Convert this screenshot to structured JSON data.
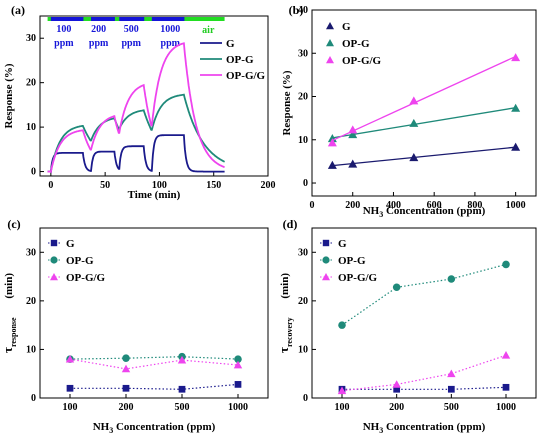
{
  "chart_data": [
    {
      "panel": "(a)",
      "type": "line",
      "xlabel": "Time (min)",
      "ylabel": "Response (%)",
      "xlim": [
        -10,
        200
      ],
      "ylim": [
        -1,
        35
      ],
      "xticks": [
        "0",
        "50",
        "100",
        "150",
        "200"
      ],
      "yticks": [
        "0",
        "10",
        "20",
        "30"
      ],
      "legend": [
        "G",
        "OP-G",
        "OP-G/G"
      ],
      "legend_position": "right-middle",
      "annotations": [
        "100",
        "ppm",
        "200",
        "ppm",
        "500",
        "ppm",
        "1000",
        "ppm",
        "air"
      ],
      "pulses": [
        {
          "concentration": "100 ppm",
          "on": 0,
          "off": 30
        },
        {
          "concentration": "200 ppm",
          "on": 37,
          "off": 59
        },
        {
          "concentration": "500 ppm",
          "on": 63,
          "off": 86
        },
        {
          "concentration": "1000 ppm",
          "on": 93,
          "off": 123
        }
      ],
      "series": [
        {
          "name": "G",
          "color": "#1a1a8c",
          "peaks": [
            4.2,
            4.5,
            5.7,
            8.2
          ]
        },
        {
          "name": "OP-G",
          "color": "#1f8a7a",
          "peaks": [
            10.3,
            12.0,
            13.8,
            17.3
          ]
        },
        {
          "name": "OP-G/G",
          "color": "#ee44ee",
          "peaks": [
            9.3,
            12.5,
            19.5,
            28.9
          ]
        }
      ]
    },
    {
      "panel": "(b)",
      "type": "scatter",
      "xlabel": "NH3 Concentration (ppm)",
      "ylabel": "Response (%)",
      "xlim": [
        0,
        1100
      ],
      "ylim": [
        -3,
        40
      ],
      "xticks": [
        "0",
        "200",
        "400",
        "600",
        "800",
        "1000"
      ],
      "yticks": [
        "0",
        "10",
        "20",
        "30",
        "40"
      ],
      "legend_position": "top-left",
      "x": [
        100,
        200,
        500,
        1000
      ],
      "series": [
        {
          "name": "G",
          "color": "#1a1a6e",
          "marker": "triangle",
          "values": [
            4.1,
            4.4,
            5.9,
            8.3
          ]
        },
        {
          "name": "OP-G",
          "color": "#1f8a7a",
          "marker": "triangle",
          "values": [
            10.3,
            11.2,
            13.8,
            17.3
          ]
        },
        {
          "name": "OP-G/G",
          "color": "#ee44ee",
          "marker": "triangle",
          "values": [
            9.3,
            12.3,
            19.0,
            29.0
          ]
        }
      ]
    },
    {
      "panel": "(c)",
      "type": "line",
      "xlabel": "NH3 Concentration (ppm)",
      "ylabel": "τresponse (min)",
      "categories": [
        "100",
        "200",
        "500",
        "1000"
      ],
      "ylim": [
        0,
        35
      ],
      "yticks": [
        "0",
        "10",
        "20",
        "30"
      ],
      "legend_position": "top-left",
      "series": [
        {
          "name": "G",
          "color": "#1a1a8c",
          "marker": "square",
          "values": [
            2.0,
            2.0,
            1.8,
            2.8
          ]
        },
        {
          "name": "OP-G",
          "color": "#1f8a7a",
          "marker": "circle",
          "values": [
            8.0,
            8.2,
            8.5,
            8.0
          ]
        },
        {
          "name": "OP-G/G",
          "color": "#ee44ee",
          "marker": "triangle",
          "values": [
            8.0,
            6.0,
            7.8,
            6.8
          ]
        }
      ]
    },
    {
      "panel": "(d)",
      "type": "line",
      "xlabel": "NH3 Concentration (ppm)",
      "ylabel": "τrecovery (min)",
      "categories": [
        "100",
        "200",
        "500",
        "1000"
      ],
      "ylim": [
        0,
        35
      ],
      "yticks": [
        "0",
        "10",
        "20",
        "30"
      ],
      "legend_position": "top-left",
      "series": [
        {
          "name": "G",
          "color": "#1a1a8c",
          "marker": "square",
          "values": [
            1.8,
            1.8,
            1.8,
            2.2
          ]
        },
        {
          "name": "OP-G",
          "color": "#1f8a7a",
          "marker": "circle",
          "values": [
            15.0,
            22.8,
            24.5,
            27.5
          ]
        },
        {
          "name": "OP-G/G",
          "color": "#ee44ee",
          "marker": "triangle",
          "values": [
            1.5,
            2.8,
            5.0,
            8.8
          ]
        }
      ]
    }
  ],
  "labels": {
    "a": "(a)",
    "b": "(b)",
    "c": "(c)",
    "d": "(d)",
    "time_axis": "Time (min)",
    "response_axis": "Response (%)",
    "conc_nh": "NH",
    "conc_sub": "3",
    "conc_rest": " Concentration (ppm)",
    "tau": "τ",
    "tau_resp": "response",
    "tau_rec": "recovery",
    "min_unit": "(min)"
  }
}
